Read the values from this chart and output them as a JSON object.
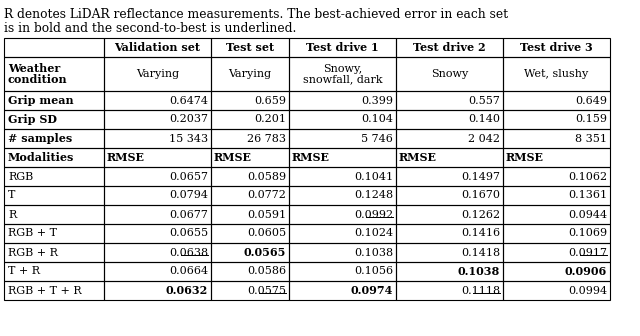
{
  "caption_line1": "R denotes LiDAR reflectance measurements. The best-achieved error in each set",
  "caption_line2": "is in bold and the second-to-best is underlined.",
  "col_headers": [
    "",
    "Validation set",
    "Test set",
    "Test drive 1",
    "Test drive 2",
    "Test drive 3"
  ],
  "rows": [
    {
      "label": "Weather\ncondition",
      "label_bold": true,
      "values": [
        "Varying",
        "Varying",
        "Snowy,\nsnowfall, dark",
        "Snowy",
        "Wet, slushy"
      ],
      "val_align": "center",
      "bold": [
        false,
        false,
        false,
        false,
        false
      ],
      "underline": [
        false,
        false,
        false,
        false,
        false
      ],
      "tall": true
    },
    {
      "label": "Grip mean",
      "label_bold": true,
      "values": [
        "0.6474",
        "0.659",
        "0.399",
        "0.557",
        "0.649"
      ],
      "val_align": "right",
      "bold": [
        false,
        false,
        false,
        false,
        false
      ],
      "underline": [
        false,
        false,
        false,
        false,
        false
      ],
      "tall": false
    },
    {
      "label": "Grip SD",
      "label_bold": true,
      "values": [
        "0.2037",
        "0.201",
        "0.104",
        "0.140",
        "0.159"
      ],
      "val_align": "right",
      "bold": [
        false,
        false,
        false,
        false,
        false
      ],
      "underline": [
        false,
        false,
        false,
        false,
        false
      ],
      "tall": false
    },
    {
      "label": "# samples",
      "label_bold": true,
      "values": [
        "15 343",
        "26 783",
        "5 746",
        "2 042",
        "8 351"
      ],
      "val_align": "right",
      "bold": [
        false,
        false,
        false,
        false,
        false
      ],
      "underline": [
        false,
        false,
        false,
        false,
        false
      ],
      "tall": false
    },
    {
      "label": "Modalities",
      "label_bold": true,
      "values": [
        "RMSE",
        "RMSE",
        "RMSE",
        "RMSE",
        "RMSE"
      ],
      "val_align": "left",
      "bold": [
        true,
        true,
        true,
        true,
        true
      ],
      "underline": [
        false,
        false,
        false,
        false,
        false
      ],
      "tall": false
    },
    {
      "label": "RGB",
      "label_bold": false,
      "values": [
        "0.0657",
        "0.0589",
        "0.1041",
        "0.1497",
        "0.1062"
      ],
      "val_align": "right",
      "bold": [
        false,
        false,
        false,
        false,
        false
      ],
      "underline": [
        false,
        false,
        false,
        false,
        false
      ],
      "tall": false
    },
    {
      "label": "T",
      "label_bold": false,
      "values": [
        "0.0794",
        "0.0772",
        "0.1248",
        "0.1670",
        "0.1361"
      ],
      "val_align": "right",
      "bold": [
        false,
        false,
        false,
        false,
        false
      ],
      "underline": [
        false,
        false,
        false,
        false,
        false
      ],
      "tall": false
    },
    {
      "label": "R",
      "label_bold": false,
      "values": [
        "0.0677",
        "0.0591",
        "0.0992",
        "0.1262",
        "0.0944"
      ],
      "val_align": "right",
      "bold": [
        false,
        false,
        false,
        false,
        false
      ],
      "underline": [
        false,
        false,
        true,
        false,
        false
      ],
      "tall": false
    },
    {
      "label": "RGB + T",
      "label_bold": false,
      "values": [
        "0.0655",
        "0.0605",
        "0.1024",
        "0.1416",
        "0.1069"
      ],
      "val_align": "right",
      "bold": [
        false,
        false,
        false,
        false,
        false
      ],
      "underline": [
        false,
        false,
        false,
        false,
        false
      ],
      "tall": false
    },
    {
      "label": "RGB + R",
      "label_bold": false,
      "values": [
        "0.0638",
        "0.0565",
        "0.1038",
        "0.1418",
        "0.0917"
      ],
      "val_align": "right",
      "bold": [
        false,
        true,
        false,
        false,
        false
      ],
      "underline": [
        true,
        false,
        false,
        false,
        true
      ],
      "tall": false
    },
    {
      "label": "T + R",
      "label_bold": false,
      "values": [
        "0.0664",
        "0.0586",
        "0.1056",
        "0.1038",
        "0.0906"
      ],
      "val_align": "right",
      "bold": [
        false,
        false,
        false,
        true,
        true
      ],
      "underline": [
        false,
        false,
        false,
        false,
        false
      ],
      "tall": false
    },
    {
      "label": "RGB + T + R",
      "label_bold": false,
      "values": [
        "0.0632",
        "0.0575",
        "0.0974",
        "0.1118",
        "0.0994"
      ],
      "val_align": "right",
      "bold": [
        true,
        false,
        true,
        false,
        false
      ],
      "underline": [
        false,
        true,
        false,
        true,
        false
      ],
      "tall": false
    }
  ],
  "figsize": [
    6.4,
    3.36
  ],
  "dpi": 100
}
